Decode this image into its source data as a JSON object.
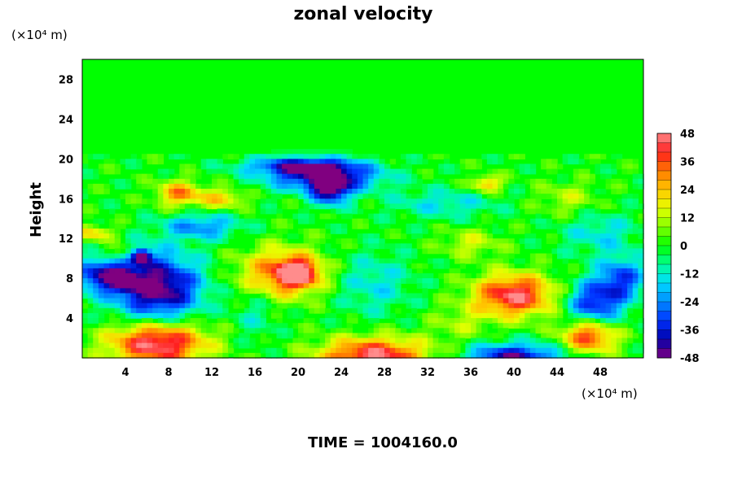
{
  "chart_data": {
    "type": "heatmap",
    "title": "zonal velocity",
    "ylabel": "Height",
    "xunit": "(×10⁴ m)",
    "yunit": "(×10⁴ m)",
    "footer": "TIME = 1004160.0",
    "xlim": [
      0,
      52
    ],
    "ylim": [
      0,
      30
    ],
    "x_ticks": [
      4,
      8,
      12,
      16,
      20,
      24,
      28,
      32,
      36,
      40,
      44,
      48
    ],
    "y_ticks": [
      4,
      8,
      12,
      16,
      20,
      24,
      28
    ],
    "colorbar": {
      "min": -48,
      "max": 48,
      "step": 4,
      "ticks": [
        48,
        36,
        24,
        12,
        0,
        -12,
        -24,
        -36,
        -48
      ]
    },
    "background_value": 0,
    "features": [
      {
        "x": 7,
        "y": 1.5,
        "sx": 3.2,
        "sy": 1.6,
        "value": 50
      },
      {
        "x": 27,
        "y": 0.2,
        "sx": 3.5,
        "sy": 1.3,
        "value": 46
      },
      {
        "x": 40,
        "y": 0.0,
        "sx": 3.0,
        "sy": 1.0,
        "value": -44
      },
      {
        "x": 47,
        "y": 2.2,
        "sx": 1.8,
        "sy": 1.2,
        "value": 40
      },
      {
        "x": 40,
        "y": 6.3,
        "sx": 2.6,
        "sy": 1.5,
        "value": 46
      },
      {
        "x": 47.5,
        "y": 5.5,
        "sx": 1.8,
        "sy": 1.6,
        "value": -36
      },
      {
        "x": 50,
        "y": 8.0,
        "sx": 1.5,
        "sy": 1.5,
        "value": -30
      },
      {
        "x": 7,
        "y": 7.0,
        "sx": 2.8,
        "sy": 2.4,
        "value": -50
      },
      {
        "x": 2,
        "y": 8.3,
        "sx": 2.0,
        "sy": 1.2,
        "value": -38
      },
      {
        "x": 4,
        "y": 7.7,
        "sx": 0.6,
        "sy": 0.5,
        "value": -52
      },
      {
        "x": 18.5,
        "y": 8.5,
        "sx": 2.8,
        "sy": 1.8,
        "value": 34
      },
      {
        "x": 20,
        "y": 8.5,
        "sx": 1.2,
        "sy": 0.9,
        "value": 42
      },
      {
        "x": 27,
        "y": 7.5,
        "sx": 2.5,
        "sy": 2.2,
        "value": -14
      },
      {
        "x": 22.5,
        "y": 18.2,
        "sx": 3.5,
        "sy": 1.0,
        "value": -44
      },
      {
        "x": 20,
        "y": 19.3,
        "sx": 3.5,
        "sy": 0.6,
        "value": -32
      },
      {
        "x": 23,
        "y": 16.8,
        "sx": 1.2,
        "sy": 1.0,
        "value": -42
      },
      {
        "x": 9,
        "y": 16.5,
        "sx": 1.5,
        "sy": 0.9,
        "value": 30
      },
      {
        "x": 13,
        "y": 16.0,
        "sx": 1.5,
        "sy": 0.7,
        "value": 22
      },
      {
        "x": 37.5,
        "y": 17.5,
        "sx": 1.0,
        "sy": 0.6,
        "value": 26
      },
      {
        "x": 33.5,
        "y": 15.5,
        "sx": 3.5,
        "sy": 1.0,
        "value": -14
      },
      {
        "x": 45,
        "y": 16.0,
        "sx": 2.0,
        "sy": 1.2,
        "value": 12
      },
      {
        "x": 11,
        "y": 13.2,
        "sx": 2.5,
        "sy": 0.9,
        "value": -24
      },
      {
        "x": 1,
        "y": 12.5,
        "sx": 1.3,
        "sy": 0.6,
        "value": 22
      },
      {
        "x": 48,
        "y": 12.5,
        "sx": 2.5,
        "sy": 1.5,
        "value": -14
      },
      {
        "x": 36,
        "y": 11.5,
        "sx": 2.0,
        "sy": 1.0,
        "value": 14
      },
      {
        "x": 5.5,
        "y": 10.2,
        "sx": 0.6,
        "sy": 0.5,
        "value": -48
      },
      {
        "x": 3.5,
        "y": 10.5,
        "sx": 1.0,
        "sy": 0.6,
        "value": 16
      },
      {
        "x": 16,
        "y": 4.5,
        "sx": 1.4,
        "sy": 2.0,
        "value": -10
      },
      {
        "x": 35,
        "y": 3.5,
        "sx": 2.0,
        "sy": 1.3,
        "value": 10
      }
    ]
  }
}
